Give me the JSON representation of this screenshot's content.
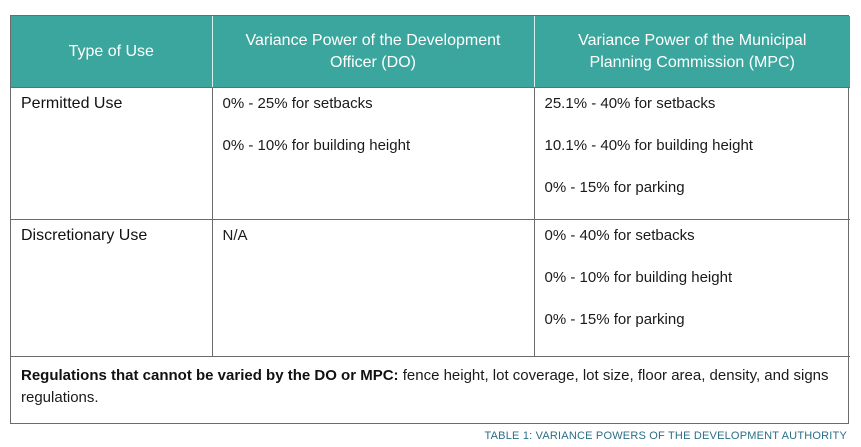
{
  "table": {
    "headers": [
      "Type of Use",
      "Variance Power of the Development Officer (DO)",
      "Variance Power of the Municipal Planning Commission (MPC)"
    ],
    "rows": [
      {
        "type": "Permitted Use",
        "do": [
          "0% - 25% for setbacks",
          "0% - 10% for building height"
        ],
        "mpc": [
          "25.1% - 40% for setbacks",
          "10.1% - 40% for building height",
          "0% - 15% for parking"
        ]
      },
      {
        "type": "Discretionary Use",
        "do": [
          "N/A"
        ],
        "mpc": [
          "0% - 40% for setbacks",
          "0% - 10% for building height",
          "0% - 15% for parking"
        ]
      }
    ],
    "note": {
      "strong": "Regulations that cannot be varied by the DO or MPC:",
      "text": " fence height, lot coverage, lot size, floor area, density, and signs regulations."
    }
  },
  "caption": "TABLE 1: VARIANCE POWERS OF THE DEVELOPMENT AUTHORITY",
  "colors": {
    "header_bg": "#3aa69e",
    "header_text": "#ffffff",
    "caption": "#2a6f86",
    "border": "#6b6b6b"
  }
}
